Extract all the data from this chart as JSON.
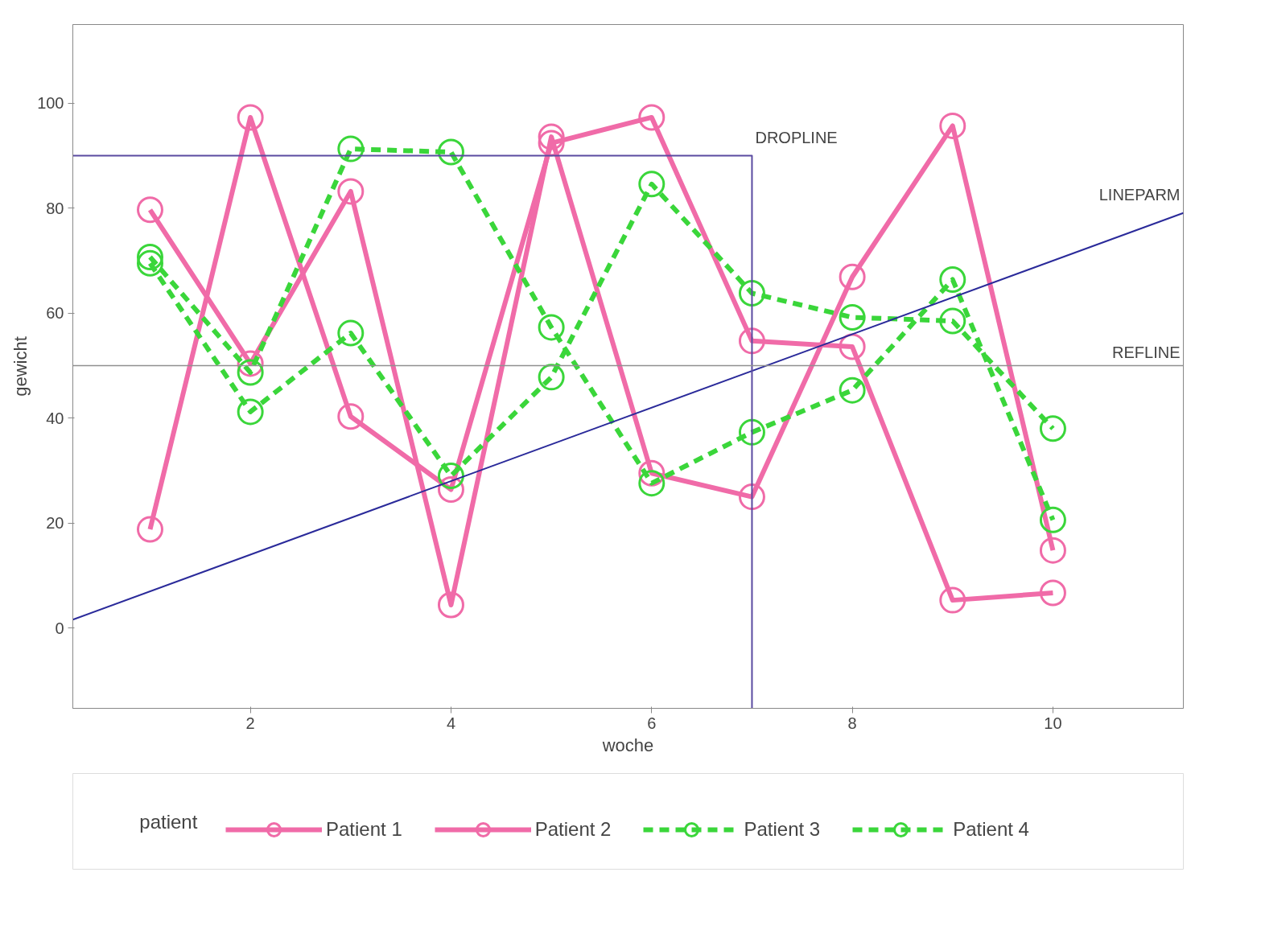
{
  "chart_data": {
    "type": "line",
    "xlabel": "woche",
    "ylabel": "gewicht",
    "legend_title": "patient",
    "x": [
      1,
      2,
      3,
      4,
      5,
      6,
      7,
      8,
      9,
      10
    ],
    "series": [
      {
        "name": "Patient 1",
        "color": "#f06ba8",
        "line_style": "solid",
        "values": [
          18.8,
          97.3,
          40.3,
          26.4,
          92.4,
          97.3,
          54.7,
          53.6,
          5.3,
          6.7
        ]
      },
      {
        "name": "Patient 2",
        "color": "#f06ba8",
        "line_style": "solid",
        "values": [
          79.7,
          50.4,
          83.2,
          4.4,
          93.6,
          29.5,
          25,
          66.9,
          95.7,
          14.8
        ]
      },
      {
        "name": "Patient 3",
        "color": "#3ad63a",
        "line_style": "dashed",
        "values": [
          69.5,
          41.2,
          56.2,
          29,
          47.8,
          84.6,
          63.8,
          59.2,
          58.5,
          38
        ]
      },
      {
        "name": "Patient 4",
        "color": "#3ad63a",
        "line_style": "dashed",
        "values": [
          70.7,
          48.7,
          91.3,
          90.7,
          57.3,
          27.6,
          37.3,
          45.3,
          66.4,
          20.6
        ]
      },
      {
        "name": "LINEPARM",
        "color": "#2a2a9a",
        "line_style": "solid",
        "marker": "none",
        "x": [
          0.23,
          11.3
        ],
        "values": [
          1.6,
          79.1
        ]
      },
      {
        "name": "DROPLINE",
        "color": "#5a4aa0",
        "line_style": "solid",
        "marker": "none",
        "x": [
          0.23,
          7,
          7
        ],
        "values": [
          90,
          90,
          -15.3
        ]
      }
    ],
    "marker": "circle",
    "ref_lines": [
      {
        "axis": "y",
        "value": 50,
        "label": "REFLINE",
        "color": "#909090"
      }
    ],
    "xlim": [
      0.23,
      11.3
    ],
    "ylim": [
      -15.3,
      115
    ],
    "xticks": [
      2,
      4,
      6,
      8,
      10
    ],
    "yticks": [
      0,
      20,
      40,
      60,
      80,
      100
    ],
    "grid": false,
    "legend": "bottom"
  }
}
